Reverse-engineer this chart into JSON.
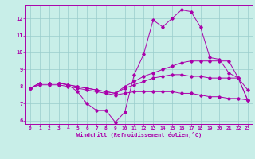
{
  "xlabel": "Windchill (Refroidissement éolien,°C)",
  "bg_color": "#c8eee8",
  "line_color": "#aa00aa",
  "grid_color": "#99cccc",
  "xlim": [
    -0.5,
    23.5
  ],
  "ylim": [
    5.8,
    12.8
  ],
  "yticks": [
    6,
    7,
    8,
    9,
    10,
    11,
    12
  ],
  "xticks": [
    0,
    1,
    2,
    3,
    4,
    5,
    6,
    7,
    8,
    9,
    10,
    11,
    12,
    13,
    14,
    15,
    16,
    17,
    18,
    19,
    20,
    21,
    22,
    23
  ],
  "curves": [
    {
      "x": [
        0,
        1,
        2,
        3,
        4,
        5,
        6,
        7,
        8,
        9,
        10,
        11,
        12,
        13,
        14,
        15,
        16,
        17,
        18,
        19,
        20,
        21,
        22,
        23
      ],
      "y": [
        7.9,
        8.2,
        8.2,
        8.2,
        8.1,
        7.7,
        7.0,
        6.6,
        6.6,
        5.9,
        6.5,
        8.7,
        9.9,
        11.9,
        11.5,
        12.0,
        12.5,
        12.4,
        11.5,
        9.7,
        9.6,
        8.8,
        8.5,
        7.8
      ]
    },
    {
      "x": [
        0,
        1,
        2,
        3,
        4,
        5,
        6,
        7,
        8,
        9,
        10,
        11,
        12,
        13,
        14,
        15,
        16,
        17,
        18,
        19,
        20,
        21,
        22,
        23
      ],
      "y": [
        7.9,
        8.2,
        8.2,
        8.2,
        8.1,
        8.0,
        7.9,
        7.8,
        7.7,
        7.6,
        8.0,
        8.3,
        8.6,
        8.8,
        9.0,
        9.2,
        9.4,
        9.5,
        9.5,
        9.5,
        9.5,
        9.5,
        8.5,
        7.2
      ]
    },
    {
      "x": [
        0,
        1,
        2,
        3,
        4,
        5,
        6,
        7,
        8,
        9,
        10,
        11,
        12,
        13,
        14,
        15,
        16,
        17,
        18,
        19,
        20,
        21,
        22,
        23
      ],
      "y": [
        7.9,
        8.2,
        8.2,
        8.2,
        8.1,
        8.0,
        7.9,
        7.8,
        7.7,
        7.6,
        7.9,
        8.1,
        8.3,
        8.5,
        8.6,
        8.7,
        8.7,
        8.6,
        8.6,
        8.5,
        8.5,
        8.5,
        8.5,
        7.2
      ]
    },
    {
      "x": [
        0,
        1,
        2,
        3,
        4,
        5,
        6,
        7,
        8,
        9,
        10,
        11,
        12,
        13,
        14,
        15,
        16,
        17,
        18,
        19,
        20,
        21,
        22,
        23
      ],
      "y": [
        7.9,
        8.1,
        8.1,
        8.1,
        8.0,
        7.9,
        7.8,
        7.7,
        7.6,
        7.5,
        7.6,
        7.7,
        7.7,
        7.7,
        7.7,
        7.7,
        7.6,
        7.6,
        7.5,
        7.4,
        7.4,
        7.3,
        7.3,
        7.2
      ]
    }
  ]
}
